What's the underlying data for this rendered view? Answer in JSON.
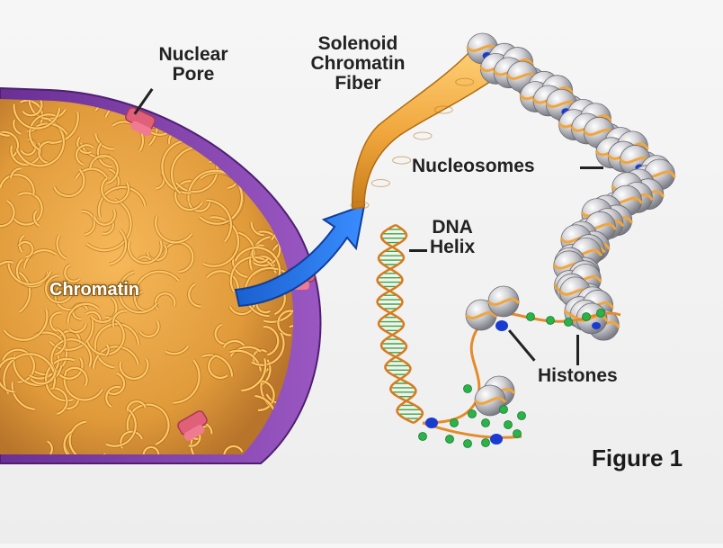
{
  "labels": {
    "nuclear_pore": [
      "Nuclear",
      "Pore"
    ],
    "solenoid": [
      "Solenoid",
      "Chromatin",
      "Fiber"
    ],
    "nucleosomes": "Nucleosomes",
    "dna_helix": [
      "DNA",
      "Helix"
    ],
    "chromatin": "Chromatin",
    "histones": "Histones",
    "figure": "Figure 1"
  },
  "colors": {
    "background": "#f3f3f3",
    "nucleus_envelope": "#7b3fa3",
    "chromatin_fiber": "#f0a63c",
    "arrow": "#1e6fe0",
    "nuclear_pore": "#e0607a",
    "histone_core": "#c9c9cf",
    "histone_marker": "#1a3bcf",
    "dna_backbone": "#3aa83a",
    "dna_strand": "#d97a1e",
    "dna_bead": "#2bb34a"
  }
}
